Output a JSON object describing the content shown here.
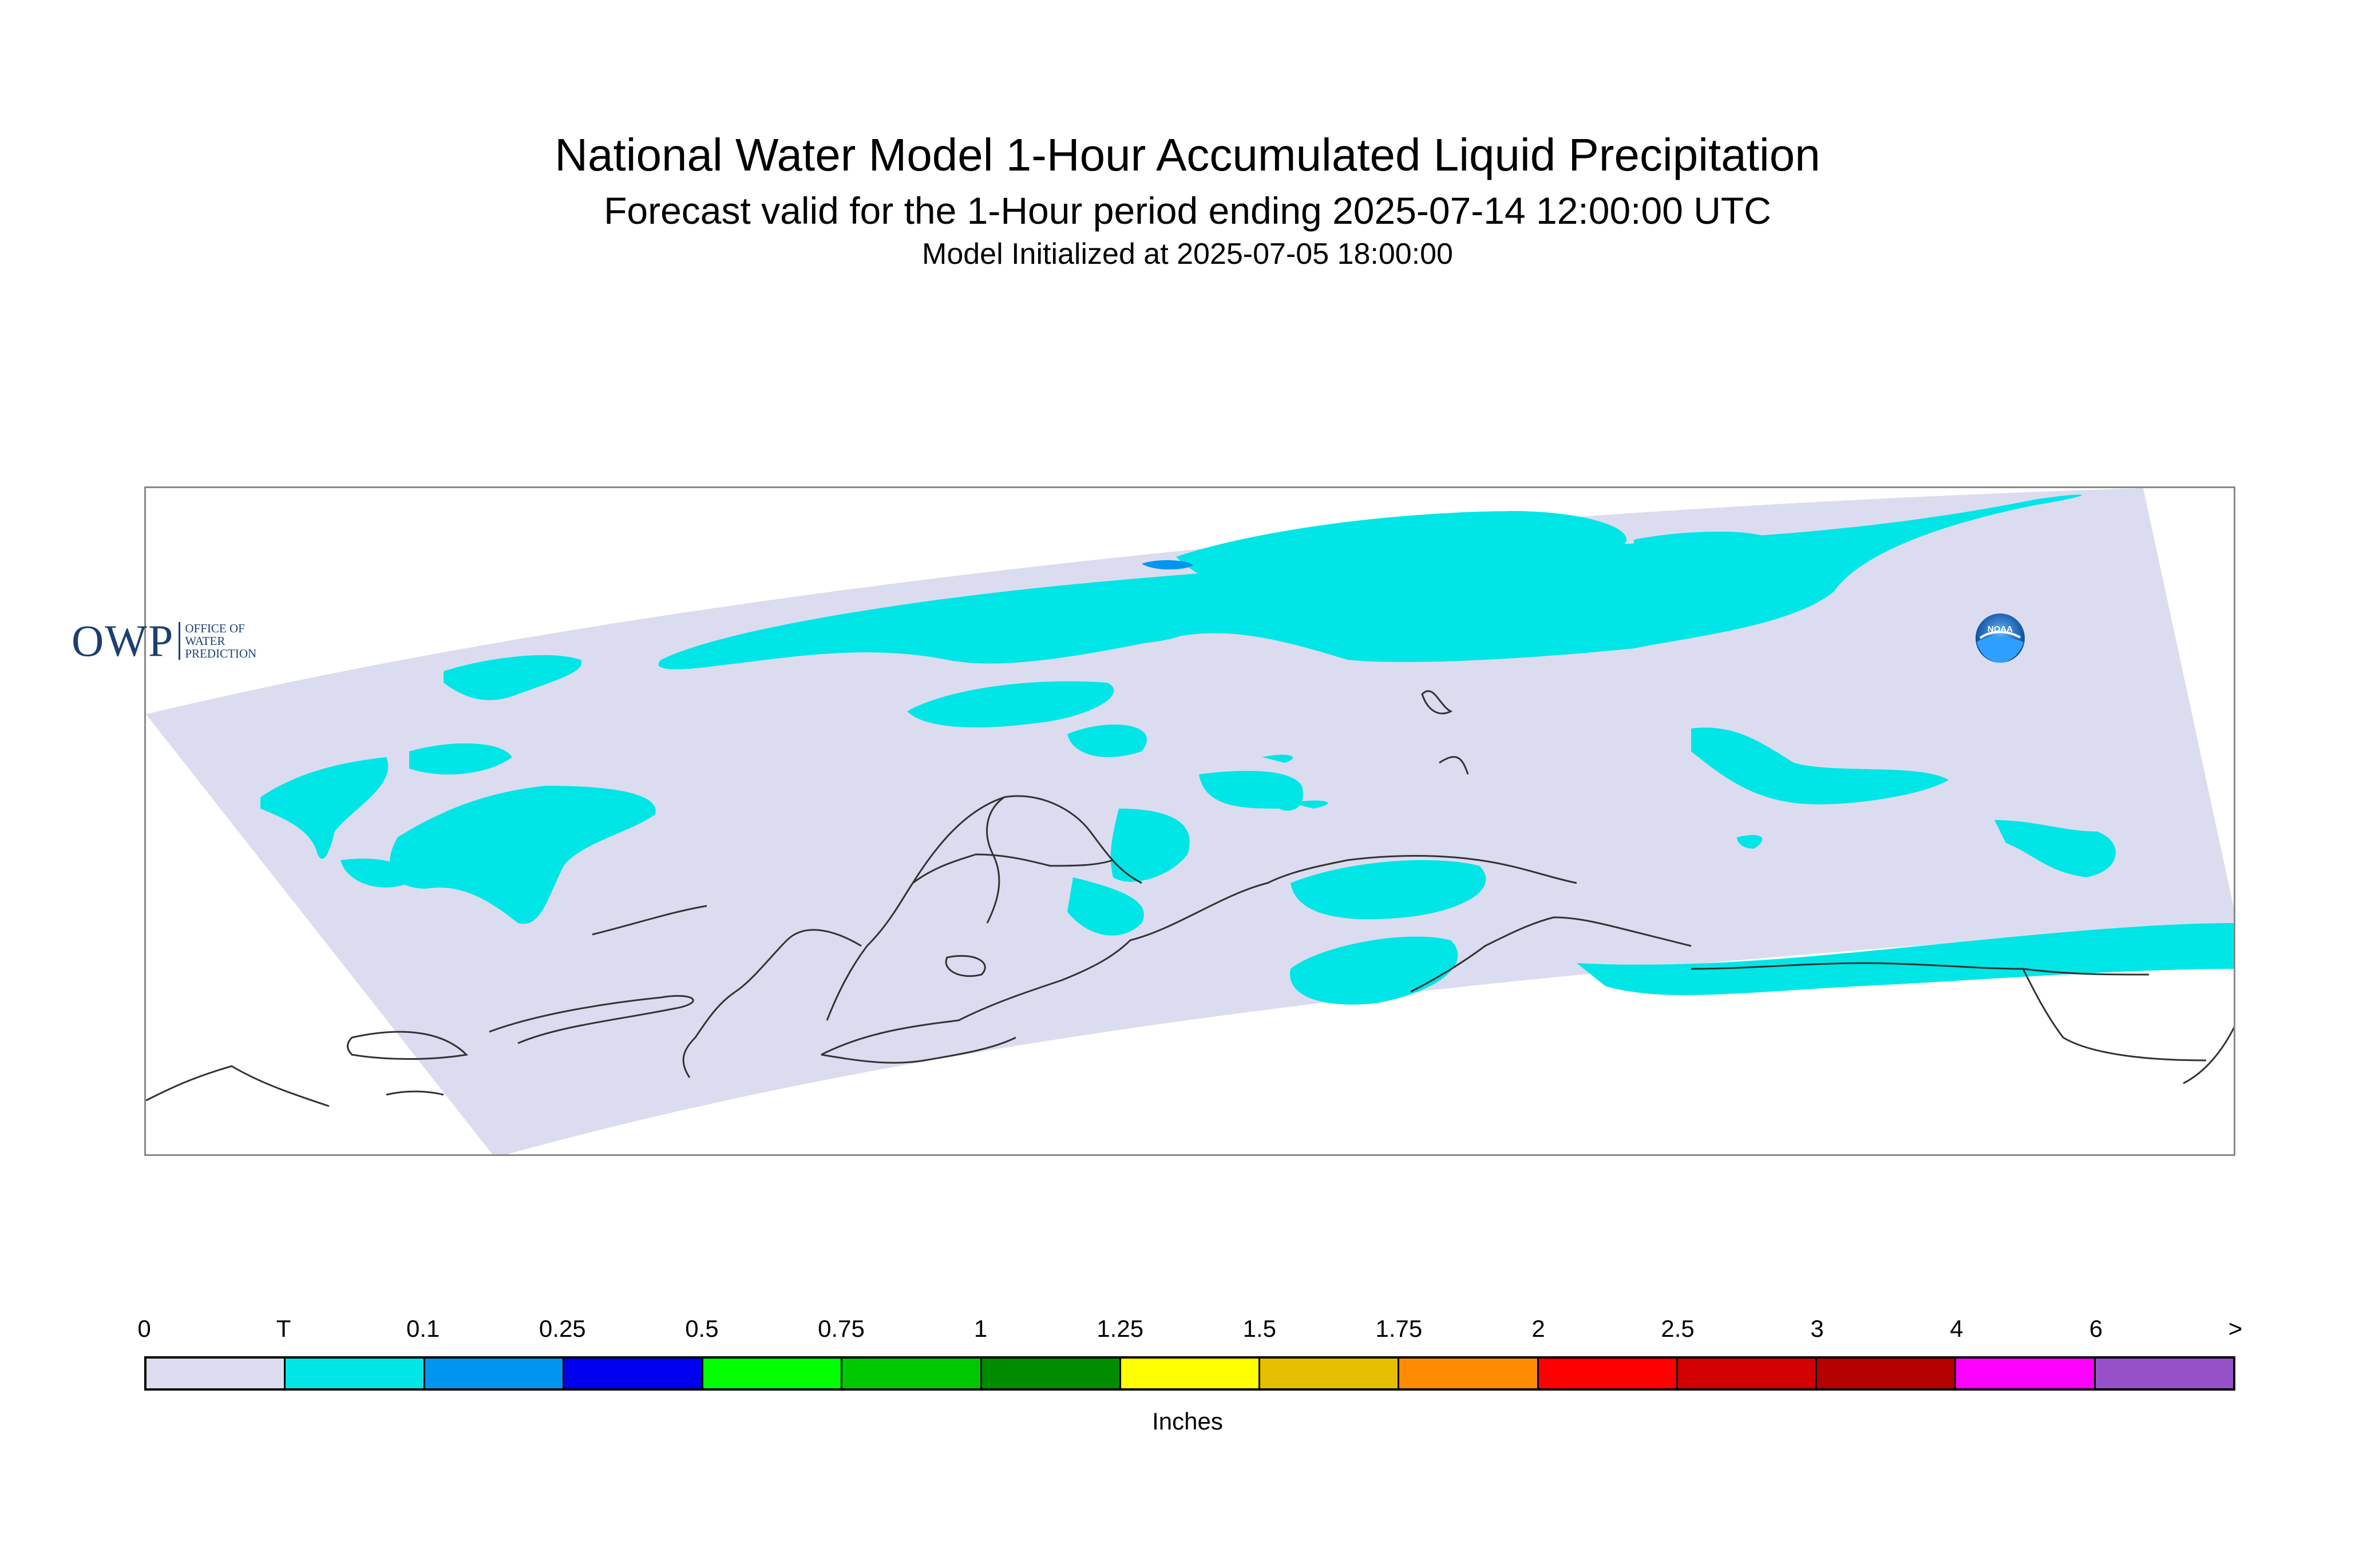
{
  "title": "National Water Model 1-Hour Accumulated Liquid Precipitation",
  "subtitle": "Forecast valid for the 1-Hour period ending 2025-07-14 12:00:00 UTC",
  "init_line": "Model Initialized at 2025-07-05 18:00:00",
  "logos": {
    "owp_big": "OWP",
    "owp_small": [
      "OFFICE OF",
      "WATER",
      "PREDICTION"
    ],
    "noaa": "NOAA"
  },
  "legend": {
    "units": "Inches",
    "labels": [
      "0",
      "T",
      "0.1",
      "0.25",
      "0.5",
      "0.75",
      "1",
      "1.25",
      "1.5",
      "1.75",
      "2",
      "2.5",
      "3",
      "4",
      "6",
      ">"
    ],
    "colors": [
      "#dcdcf0",
      "#00e6e6",
      "#0096f0",
      "#0000f0",
      "#00ff00",
      "#00c800",
      "#008c00",
      "#ffff00",
      "#e6be00",
      "#ff8c00",
      "#ff0000",
      "#d20000",
      "#b40000",
      "#ff00ff",
      "#9650c8"
    ]
  },
  "map": {
    "domain_fill": "#dcdcf0",
    "precip_color": "#00e6e6",
    "precip_color_high": "#0096f0",
    "coast_color": "#333333"
  }
}
